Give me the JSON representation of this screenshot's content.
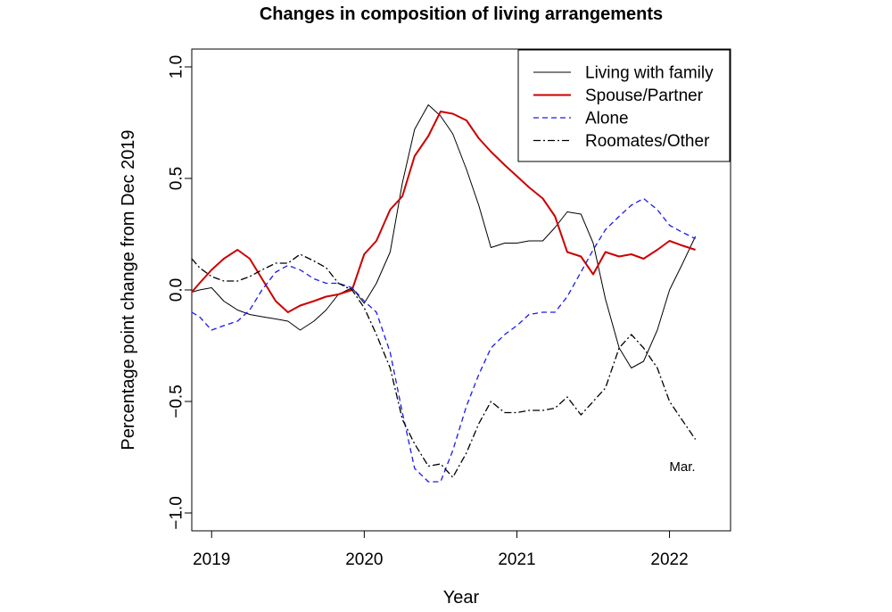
{
  "chart_data": {
    "type": "line",
    "title": "Changes in composition of living arrangements",
    "xlabel": "Year",
    "ylabel": "Percentage point change from Dec 2019",
    "xlim": [
      2018.87,
      2022.4
    ],
    "ylim": [
      -1.08,
      1.08
    ],
    "x_ticks": [
      2019,
      2020,
      2021,
      2022
    ],
    "x_tick_labels": [
      "2019",
      "2020",
      "2021",
      "2022"
    ],
    "y_ticks": [
      -1.0,
      -0.5,
      0.0,
      0.5,
      1.0
    ],
    "y_tick_labels": [
      "−1.0",
      "−0.5",
      "0.0",
      "0.5",
      "1.0"
    ],
    "grid": false,
    "legend_position": "top-right",
    "annotation": "Mar.",
    "series": [
      {
        "name": "Living with family",
        "color": "#000000",
        "style": "solid",
        "width": 1,
        "x": [
          2018.87,
          2018.92,
          2019.0,
          2019.08,
          2019.17,
          2019.25,
          2019.33,
          2019.42,
          2019.5,
          2019.58,
          2019.67,
          2019.75,
          2019.83,
          2019.92,
          2020.0,
          2020.08,
          2020.17,
          2020.25,
          2020.33,
          2020.42,
          2020.5,
          2020.58,
          2020.67,
          2020.75,
          2020.83,
          2020.92,
          2021.0,
          2021.08,
          2021.17,
          2021.25,
          2021.33,
          2021.42,
          2021.5,
          2021.58,
          2021.67,
          2021.75,
          2021.83,
          2021.92,
          2022.0,
          2022.08,
          2022.17
        ],
        "y": [
          -0.01,
          0.0,
          0.01,
          -0.05,
          -0.09,
          -0.11,
          -0.12,
          -0.13,
          -0.14,
          -0.18,
          -0.14,
          -0.09,
          -0.02,
          0.01,
          -0.06,
          0.03,
          0.17,
          0.48,
          0.72,
          0.83,
          0.78,
          0.7,
          0.54,
          0.38,
          0.19,
          0.21,
          0.21,
          0.22,
          0.22,
          0.28,
          0.35,
          0.34,
          0.21,
          -0.04,
          -0.26,
          -0.35,
          -0.32,
          -0.18,
          0.0,
          0.11,
          0.24
        ]
      },
      {
        "name": "Spouse/Partner",
        "color": "#cc0000",
        "style": "solid",
        "width": 2,
        "x": [
          2018.87,
          2018.92,
          2019.0,
          2019.08,
          2019.17,
          2019.25,
          2019.33,
          2019.42,
          2019.5,
          2019.58,
          2019.67,
          2019.75,
          2019.83,
          2019.92,
          2020.0,
          2020.08,
          2020.17,
          2020.25,
          2020.33,
          2020.42,
          2020.5,
          2020.58,
          2020.67,
          2020.75,
          2020.83,
          2020.92,
          2021.0,
          2021.08,
          2021.17,
          2021.25,
          2021.33,
          2021.42,
          2021.5,
          2021.58,
          2021.67,
          2021.75,
          2021.83,
          2021.92,
          2022.0,
          2022.08,
          2022.17
        ],
        "y": [
          -0.01,
          0.03,
          0.09,
          0.14,
          0.18,
          0.14,
          0.05,
          -0.05,
          -0.1,
          -0.07,
          -0.05,
          -0.03,
          -0.02,
          0.0,
          0.16,
          0.22,
          0.36,
          0.42,
          0.6,
          0.69,
          0.8,
          0.79,
          0.76,
          0.68,
          0.62,
          0.56,
          0.51,
          0.46,
          0.41,
          0.33,
          0.17,
          0.15,
          0.07,
          0.17,
          0.15,
          0.16,
          0.14,
          0.18,
          0.22,
          0.2,
          0.18
        ]
      },
      {
        "name": "Alone",
        "color": "#1a1aee",
        "style": "dashed",
        "width": 1.3,
        "x": [
          2018.87,
          2018.92,
          2019.0,
          2019.08,
          2019.17,
          2019.25,
          2019.33,
          2019.42,
          2019.5,
          2019.58,
          2019.67,
          2019.75,
          2019.83,
          2019.92,
          2020.0,
          2020.08,
          2020.17,
          2020.25,
          2020.33,
          2020.42,
          2020.5,
          2020.58,
          2020.67,
          2020.75,
          2020.83,
          2020.92,
          2021.0,
          2021.08,
          2021.17,
          2021.25,
          2021.33,
          2021.42,
          2021.5,
          2021.58,
          2021.67,
          2021.75,
          2021.83,
          2021.92,
          2022.0,
          2022.08,
          2022.17
        ],
        "y": [
          -0.1,
          -0.12,
          -0.18,
          -0.16,
          -0.14,
          -0.09,
          0.0,
          0.08,
          0.11,
          0.09,
          0.05,
          0.03,
          0.03,
          0.01,
          -0.05,
          -0.1,
          -0.28,
          -0.55,
          -0.8,
          -0.86,
          -0.86,
          -0.72,
          -0.52,
          -0.38,
          -0.26,
          -0.2,
          -0.16,
          -0.11,
          -0.1,
          -0.1,
          -0.03,
          0.08,
          0.18,
          0.27,
          0.33,
          0.38,
          0.41,
          0.36,
          0.29,
          0.26,
          0.23
        ]
      },
      {
        "name": "Roomates/Other",
        "color": "#000000",
        "style": "dashdot",
        "width": 1.3,
        "x": [
          2018.87,
          2018.92,
          2019.0,
          2019.08,
          2019.17,
          2019.25,
          2019.33,
          2019.42,
          2019.5,
          2019.58,
          2019.67,
          2019.75,
          2019.83,
          2019.92,
          2020.0,
          2020.08,
          2020.17,
          2020.25,
          2020.33,
          2020.42,
          2020.5,
          2020.58,
          2020.67,
          2020.75,
          2020.83,
          2020.92,
          2021.0,
          2021.08,
          2021.17,
          2021.25,
          2021.33,
          2021.42,
          2021.5,
          2021.58,
          2021.67,
          2021.75,
          2021.83,
          2021.92,
          2022.0,
          2022.08,
          2022.17
        ],
        "y": [
          0.14,
          0.1,
          0.06,
          0.04,
          0.04,
          0.06,
          0.09,
          0.12,
          0.12,
          0.16,
          0.13,
          0.1,
          0.03,
          0.0,
          -0.08,
          -0.2,
          -0.35,
          -0.58,
          -0.69,
          -0.79,
          -0.78,
          -0.84,
          -0.73,
          -0.6,
          -0.5,
          -0.55,
          -0.55,
          -0.54,
          -0.54,
          -0.53,
          -0.48,
          -0.56,
          -0.5,
          -0.44,
          -0.26,
          -0.2,
          -0.26,
          -0.35,
          -0.5,
          -0.58,
          -0.67
        ]
      }
    ]
  }
}
